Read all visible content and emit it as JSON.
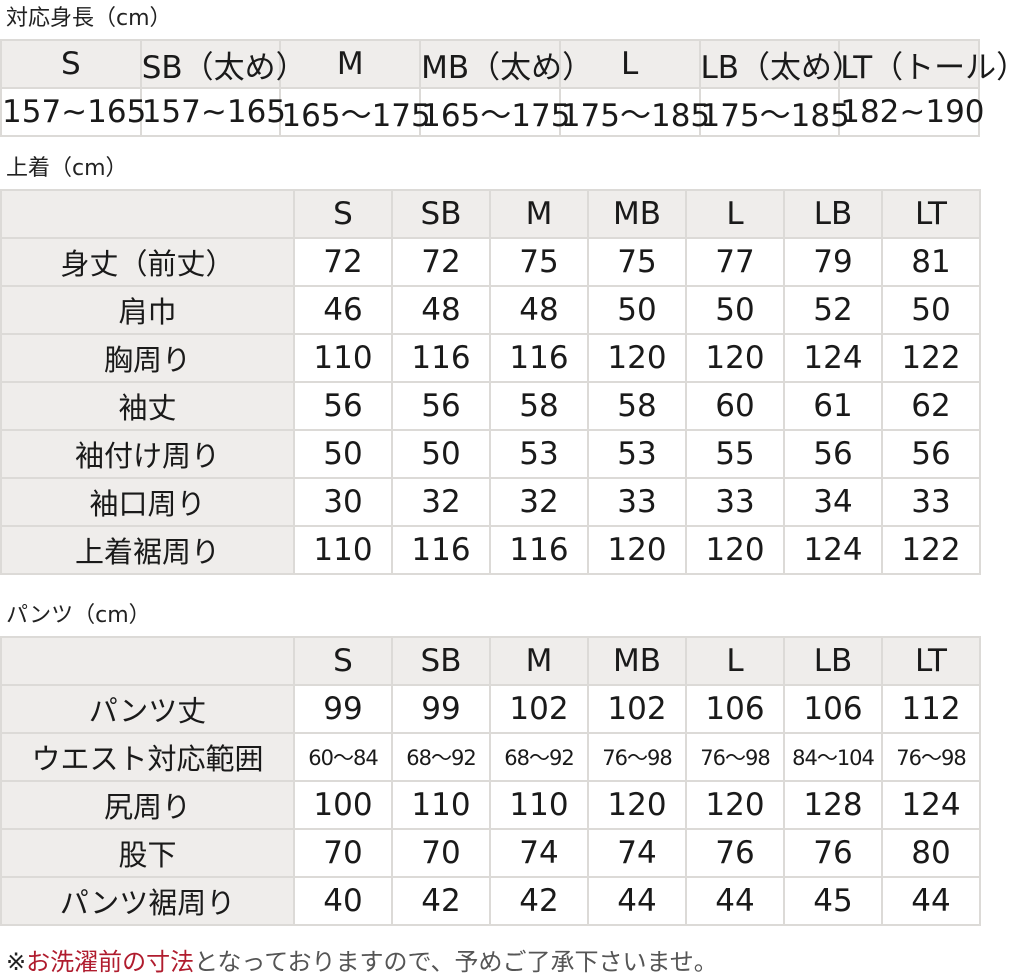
{
  "height_table": {
    "title": "対応身長（cm）",
    "headers": [
      "S",
      "SB（太め）",
      "M",
      "MB（太め）",
      "L",
      "LB（太め）",
      "LT（トール）"
    ],
    "values": [
      "157~165",
      "157~165",
      "165～175",
      "165～175",
      "175～185",
      "175～185",
      "182~190"
    ]
  },
  "top_table": {
    "title": "上着（cm）",
    "headers": [
      "S",
      "SB",
      "M",
      "MB",
      "L",
      "LB",
      "LT"
    ],
    "rows": [
      {
        "label": "身丈（前丈）",
        "values": [
          "72",
          "72",
          "75",
          "75",
          "77",
          "79",
          "81"
        ]
      },
      {
        "label": "肩巾",
        "values": [
          "46",
          "48",
          "48",
          "50",
          "50",
          "52",
          "50"
        ]
      },
      {
        "label": "胸周り",
        "values": [
          "110",
          "116",
          "116",
          "120",
          "120",
          "124",
          "122"
        ]
      },
      {
        "label": "袖丈",
        "values": [
          "56",
          "56",
          "58",
          "58",
          "60",
          "61",
          "62"
        ]
      },
      {
        "label": "袖付け周り",
        "values": [
          "50",
          "50",
          "53",
          "53",
          "55",
          "56",
          "56"
        ]
      },
      {
        "label": "袖口周り",
        "values": [
          "30",
          "32",
          "32",
          "33",
          "33",
          "34",
          "33"
        ]
      },
      {
        "label": "上着裾周り",
        "values": [
          "110",
          "116",
          "116",
          "120",
          "120",
          "124",
          "122"
        ]
      }
    ]
  },
  "pants_table": {
    "title": "パンツ（cm）",
    "headers": [
      "S",
      "SB",
      "M",
      "MB",
      "L",
      "LB",
      "LT"
    ],
    "rows": [
      {
        "label": "パンツ丈",
        "values": [
          "99",
          "99",
          "102",
          "102",
          "106",
          "106",
          "112"
        ]
      },
      {
        "label": "ウエスト対応範囲",
        "values": [
          "60～84",
          "68～92",
          "68～92",
          "76～98",
          "76～98",
          "84～104",
          "76～98"
        ]
      },
      {
        "label": "尻周り",
        "values": [
          "100",
          "110",
          "110",
          "120",
          "120",
          "128",
          "124"
        ]
      },
      {
        "label": "股下",
        "values": [
          "70",
          "70",
          "74",
          "74",
          "76",
          "76",
          "80"
        ]
      },
      {
        "label": "パンツ裾周り",
        "values": [
          "40",
          "42",
          "42",
          "44",
          "44",
          "45",
          "44"
        ]
      }
    ]
  },
  "note": {
    "mark": "※",
    "highlight": "お洗濯前の寸法",
    "rest": "となっておりますので、予めご了承下さいませ。"
  },
  "colors": {
    "header_bg": "#efedeb",
    "border": "#dcdad7",
    "highlight": "#b01c2e"
  }
}
